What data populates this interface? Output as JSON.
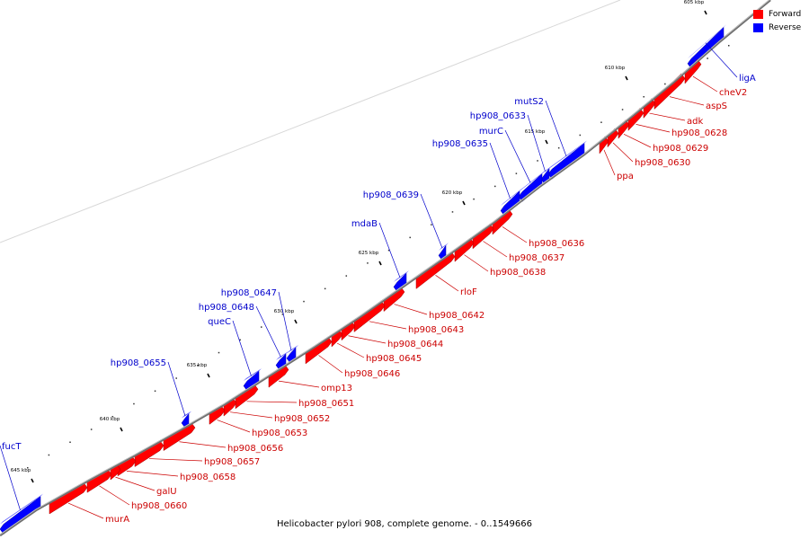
{
  "caption": "Helicobacter pylori 908, complete genome. - 0..1549666",
  "legend": {
    "forward": "Forward",
    "reverse": "Reverse",
    "forward_color": "#ff0000",
    "reverse_color": "#0000ff"
  },
  "colors": {
    "backbone": "#808080",
    "forward_label": "#cc0000",
    "reverse_label": "#0000cc",
    "tick": "#000000"
  },
  "ticks": [
    "605 kbp",
    "610 kbp",
    "615 kbp",
    "620 kbp",
    "625 kbp",
    "630 kbp",
    "635 kbp",
    "640 kbp",
    "645 kbp"
  ],
  "genes": [
    {
      "label": "ligA",
      "strand": "reverse"
    },
    {
      "label": "cheV2",
      "strand": "forward"
    },
    {
      "label": "aspS",
      "strand": "forward"
    },
    {
      "label": "adk",
      "strand": "forward"
    },
    {
      "label": "hp908_0628",
      "strand": "forward"
    },
    {
      "label": "hp908_0629",
      "strand": "forward"
    },
    {
      "label": "hp908_0630",
      "strand": "forward"
    },
    {
      "label": "ppa",
      "strand": "forward"
    },
    {
      "label": "mutS2",
      "strand": "reverse"
    },
    {
      "label": "hp908_0633",
      "strand": "reverse"
    },
    {
      "label": "murC",
      "strand": "reverse"
    },
    {
      "label": "hp908_0635",
      "strand": "reverse"
    },
    {
      "label": "hp908_0636",
      "strand": "forward"
    },
    {
      "label": "hp908_0637",
      "strand": "forward"
    },
    {
      "label": "hp908_0638",
      "strand": "forward"
    },
    {
      "label": "hp908_0639",
      "strand": "reverse"
    },
    {
      "label": "mdaB",
      "strand": "reverse"
    },
    {
      "label": "rloF",
      "strand": "forward"
    },
    {
      "label": "hp908_0642",
      "strand": "forward"
    },
    {
      "label": "hp908_0643",
      "strand": "forward"
    },
    {
      "label": "hp908_0644",
      "strand": "forward"
    },
    {
      "label": "hp908_0645",
      "strand": "forward"
    },
    {
      "label": "hp908_0646",
      "strand": "forward"
    },
    {
      "label": "hp908_0647",
      "strand": "reverse"
    },
    {
      "label": "hp908_0648",
      "strand": "reverse"
    },
    {
      "label": "queC",
      "strand": "reverse"
    },
    {
      "label": "omp13",
      "strand": "forward"
    },
    {
      "label": "hp908_0651",
      "strand": "forward"
    },
    {
      "label": "hp908_0652",
      "strand": "forward"
    },
    {
      "label": "hp908_0653",
      "strand": "forward"
    },
    {
      "label": "hp908_0655",
      "strand": "reverse"
    },
    {
      "label": "hp908_0656",
      "strand": "forward"
    },
    {
      "label": "hp908_0657",
      "strand": "forward"
    },
    {
      "label": "hp908_0658",
      "strand": "forward"
    },
    {
      "label": "galU",
      "strand": "forward"
    },
    {
      "label": "hp908_0660",
      "strand": "forward"
    },
    {
      "label": "murA",
      "strand": "forward"
    },
    {
      "label": "fucT",
      "strand": "reverse"
    }
  ]
}
